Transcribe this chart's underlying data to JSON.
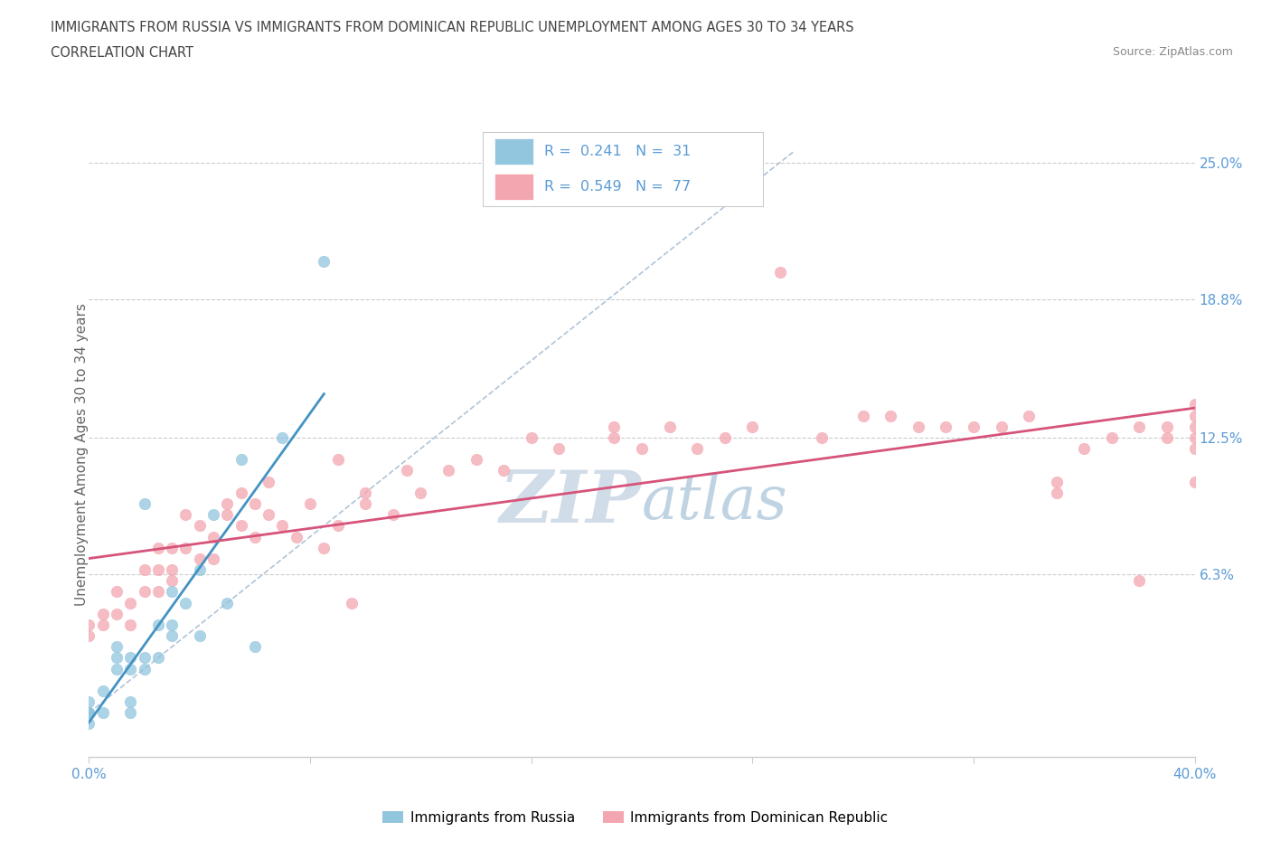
{
  "title_line1": "IMMIGRANTS FROM RUSSIA VS IMMIGRANTS FROM DOMINICAN REPUBLIC UNEMPLOYMENT AMONG AGES 30 TO 34 YEARS",
  "title_line2": "CORRELATION CHART",
  "source_text": "Source: ZipAtlas.com",
  "ylabel": "Unemployment Among Ages 30 to 34 years",
  "xmin": 0.0,
  "xmax": 0.4,
  "ymin": -0.02,
  "ymax": 0.255,
  "ytick_vals": [
    0.0,
    0.063,
    0.125,
    0.188,
    0.25
  ],
  "ytick_labels": [
    "",
    "6.3%",
    "12.5%",
    "18.8%",
    "25.0%"
  ],
  "xtick_positions": [
    0.0,
    0.08,
    0.16,
    0.24,
    0.32,
    0.4
  ],
  "xtick_labels": [
    "0.0%",
    "",
    "",
    "",
    "",
    "40.0%"
  ],
  "r_russia": 0.241,
  "n_russia": 31,
  "r_dominican": 0.549,
  "n_dominican": 77,
  "color_russia": "#92c5de",
  "color_dominican": "#f4a6b0",
  "trendline_russia_color": "#4393c3",
  "trendline_dominican_color": "#d6537a",
  "dashed_line_color": "#b0c4d8",
  "watermark_color": "#d0dce8",
  "russia_x": [
    0.0,
    0.0,
    0.0,
    0.0,
    0.0,
    0.005,
    0.005,
    0.01,
    0.01,
    0.01,
    0.015,
    0.015,
    0.015,
    0.015,
    0.02,
    0.02,
    0.02,
    0.025,
    0.025,
    0.03,
    0.03,
    0.03,
    0.035,
    0.04,
    0.04,
    0.045,
    0.05,
    0.055,
    0.06,
    0.07,
    0.085
  ],
  "russia_y": [
    0.0,
    0.0,
    0.0,
    -0.005,
    0.005,
    0.0,
    0.01,
    0.02,
    0.025,
    0.03,
    0.0,
    0.005,
    0.02,
    0.025,
    0.02,
    0.025,
    0.095,
    0.025,
    0.04,
    0.035,
    0.04,
    0.055,
    0.05,
    0.035,
    0.065,
    0.09,
    0.05,
    0.115,
    0.03,
    0.125,
    0.205
  ],
  "dominican_x": [
    0.0,
    0.0,
    0.005,
    0.005,
    0.01,
    0.01,
    0.015,
    0.015,
    0.02,
    0.02,
    0.025,
    0.025,
    0.025,
    0.03,
    0.03,
    0.03,
    0.035,
    0.035,
    0.04,
    0.04,
    0.045,
    0.045,
    0.05,
    0.05,
    0.055,
    0.055,
    0.06,
    0.06,
    0.065,
    0.065,
    0.07,
    0.075,
    0.08,
    0.085,
    0.09,
    0.09,
    0.095,
    0.1,
    0.1,
    0.11,
    0.115,
    0.12,
    0.13,
    0.14,
    0.15,
    0.16,
    0.17,
    0.19,
    0.19,
    0.2,
    0.21,
    0.22,
    0.23,
    0.24,
    0.25,
    0.265,
    0.28,
    0.29,
    0.3,
    0.31,
    0.32,
    0.33,
    0.34,
    0.35,
    0.35,
    0.36,
    0.37,
    0.38,
    0.38,
    0.39,
    0.39,
    0.4,
    0.4,
    0.4,
    0.4,
    0.4,
    0.4
  ],
  "dominican_y": [
    0.035,
    0.04,
    0.04,
    0.045,
    0.045,
    0.055,
    0.04,
    0.05,
    0.055,
    0.065,
    0.055,
    0.065,
    0.075,
    0.06,
    0.065,
    0.075,
    0.075,
    0.09,
    0.07,
    0.085,
    0.07,
    0.08,
    0.09,
    0.095,
    0.085,
    0.1,
    0.08,
    0.095,
    0.09,
    0.105,
    0.085,
    0.08,
    0.095,
    0.075,
    0.085,
    0.115,
    0.05,
    0.1,
    0.095,
    0.09,
    0.11,
    0.1,
    0.11,
    0.115,
    0.11,
    0.125,
    0.12,
    0.125,
    0.13,
    0.12,
    0.13,
    0.12,
    0.125,
    0.13,
    0.2,
    0.125,
    0.135,
    0.135,
    0.13,
    0.13,
    0.13,
    0.13,
    0.135,
    0.1,
    0.105,
    0.12,
    0.125,
    0.13,
    0.06,
    0.125,
    0.13,
    0.105,
    0.12,
    0.125,
    0.13,
    0.135,
    0.14
  ],
  "legend_russia_label": "Immigrants from Russia",
  "legend_dominican_label": "Immigrants from Dominican Republic",
  "background_color": "#ffffff",
  "grid_color": "#cccccc",
  "tick_label_color": "#5b9bd5",
  "axis_label_color": "#666666",
  "title_color": "#444444"
}
